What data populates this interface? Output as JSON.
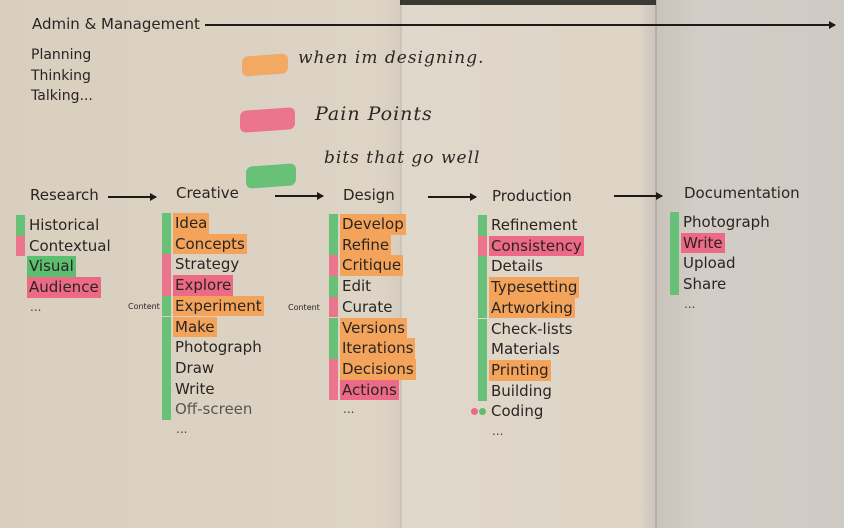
{
  "header": {
    "title": "Admin & Management"
  },
  "activities": [
    "Planning",
    "Thinking",
    "Talking..."
  ],
  "legend": [
    {
      "color": "orange",
      "text": "when im designing."
    },
    {
      "color": "pink",
      "text": "Pain Points"
    },
    {
      "color": "green",
      "text": "bits that go well"
    }
  ],
  "colors": {
    "orange": "#f4a45a",
    "pink": "#ec6a86",
    "green": "#5cbf70",
    "muted_text": "#5a5450"
  },
  "content_label": "Content",
  "ellipsis": "...",
  "columns": [
    {
      "title": "Research",
      "items": [
        {
          "label": "Historical",
          "marker": "green"
        },
        {
          "label": "Contextual",
          "marker": "pink"
        },
        {
          "label": "Visual",
          "highlight": "green"
        },
        {
          "label": "Audience",
          "highlight": "pink"
        }
      ]
    },
    {
      "title": "Creative",
      "items": [
        {
          "label": "Idea",
          "highlight": "orange",
          "marker": "green"
        },
        {
          "label": "Concepts",
          "highlight": "orange",
          "marker": "green"
        },
        {
          "label": "Strategy",
          "marker": "pink"
        },
        {
          "label": "Explore",
          "highlight": "pink",
          "marker": "pink"
        },
        {
          "label": "Experiment",
          "highlight": "orange",
          "marker": "green",
          "content": true
        },
        {
          "label": "Make",
          "highlight": "orange",
          "marker": "green"
        },
        {
          "label": "Photograph",
          "marker": "green"
        },
        {
          "label": "Draw",
          "marker": "green"
        },
        {
          "label": "Write",
          "marker": "green"
        },
        {
          "label": "Off-screen",
          "marker": "green",
          "muted": true
        }
      ]
    },
    {
      "title": "Design",
      "items": [
        {
          "label": "Develop",
          "highlight": "orange",
          "marker": "green"
        },
        {
          "label": "Refine",
          "highlight": "orange",
          "marker": "green"
        },
        {
          "label": "Critique",
          "highlight": "orange",
          "marker": "pink"
        },
        {
          "label": "Edit",
          "marker": "green"
        },
        {
          "label": "Curate",
          "marker": "pink",
          "content": true
        },
        {
          "label": "Versions",
          "highlight": "orange",
          "marker": "green"
        },
        {
          "label": "Iterations",
          "highlight": "orange",
          "marker": "green"
        },
        {
          "label": "Decisions",
          "highlight": "orange",
          "marker": "pink"
        },
        {
          "label": "Actions",
          "highlight": "pink",
          "marker": "pink"
        }
      ]
    },
    {
      "title": "Production",
      "items": [
        {
          "label": "Refinement",
          "marker": "green"
        },
        {
          "label": "Consistency",
          "highlight": "pink",
          "marker": "pink"
        },
        {
          "label": "Details",
          "marker": "green"
        },
        {
          "label": "Typesetting",
          "highlight": "orange",
          "marker": "green"
        },
        {
          "label": "Artworking",
          "highlight": "orange",
          "marker": "green"
        },
        {
          "label": "Check-lists",
          "marker": "green"
        },
        {
          "label": "Materials",
          "marker": "green"
        },
        {
          "label": "Printing",
          "highlight": "orange",
          "marker": "green"
        },
        {
          "label": "Building",
          "marker": "green"
        },
        {
          "label": "Coding",
          "dots": [
            "pink",
            "green"
          ]
        }
      ]
    },
    {
      "title": "Documentation",
      "items": [
        {
          "label": "Photograph",
          "marker": "green"
        },
        {
          "label": "Write",
          "highlight": "pink",
          "marker": "green"
        },
        {
          "label": "Upload",
          "marker": "green"
        },
        {
          "label": "Share",
          "marker": "green"
        }
      ]
    }
  ]
}
